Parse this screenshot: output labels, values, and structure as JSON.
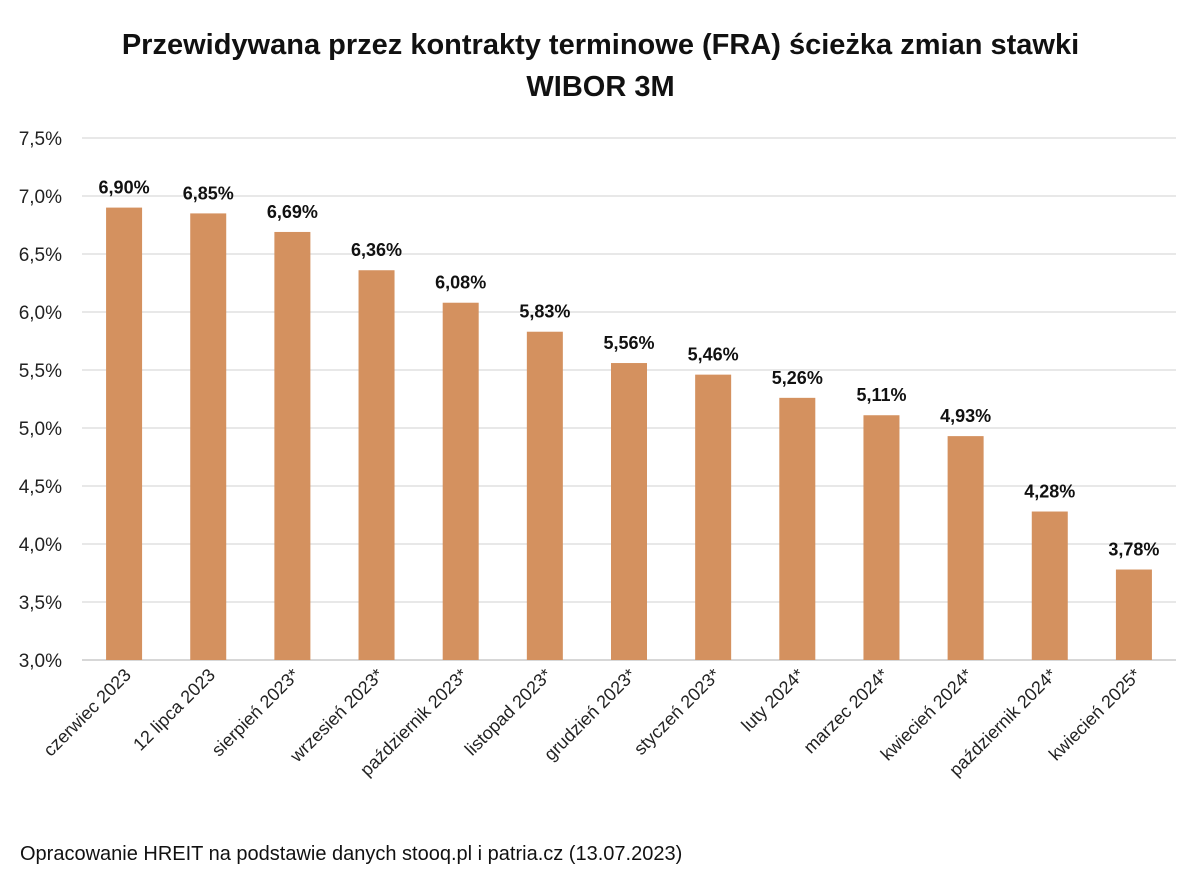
{
  "chart_data": {
    "type": "bar",
    "title": "Przewidywana przez kontrakty terminowe (FRA) ścieżka zmian stawki WIBOR 3M",
    "title_lines": [
      "Przewidywana przez kontrakty terminowe (FRA) ścieżka zmian stawki",
      "WIBOR 3M"
    ],
    "categories": [
      "czerwiec 2023",
      "12 lipca 2023",
      "sierpień 2023*",
      "wrzesień 2023*",
      "październik 2023*",
      "listopad 2023*",
      "grudzień 2023*",
      "styczeń 2023*",
      "luty 2024*",
      "marzec 2024*",
      "kwiecień 2024*",
      "październik 2024*",
      "kwiecień 2025*"
    ],
    "values": [
      6.9,
      6.85,
      6.69,
      6.36,
      6.08,
      5.83,
      5.56,
      5.46,
      5.26,
      5.11,
      4.93,
      4.28,
      3.78
    ],
    "data_labels": [
      "6,90%",
      "6,85%",
      "6,69%",
      "6,36%",
      "6,08%",
      "5,83%",
      "5,56%",
      "5,46%",
      "5,26%",
      "5,11%",
      "4,93%",
      "4,28%",
      "3,78%"
    ],
    "ylim": [
      3.0,
      7.5
    ],
    "yticks": [
      3.0,
      3.5,
      4.0,
      4.5,
      5.0,
      5.5,
      6.0,
      6.5,
      7.0,
      7.5
    ],
    "ytick_labels": [
      "3,0%",
      "3,5%",
      "4,0%",
      "4,5%",
      "5,0%",
      "5,5%",
      "6,0%",
      "6,5%",
      "7,0%",
      "7,5%"
    ],
    "xlabel": "",
    "ylabel": "",
    "grid": true,
    "legend": "none",
    "bar_color": "#D4915F"
  },
  "footer": "Opracowanie HREIT na podstawie danych stooq.pl i patria.cz (13.07.2023)"
}
